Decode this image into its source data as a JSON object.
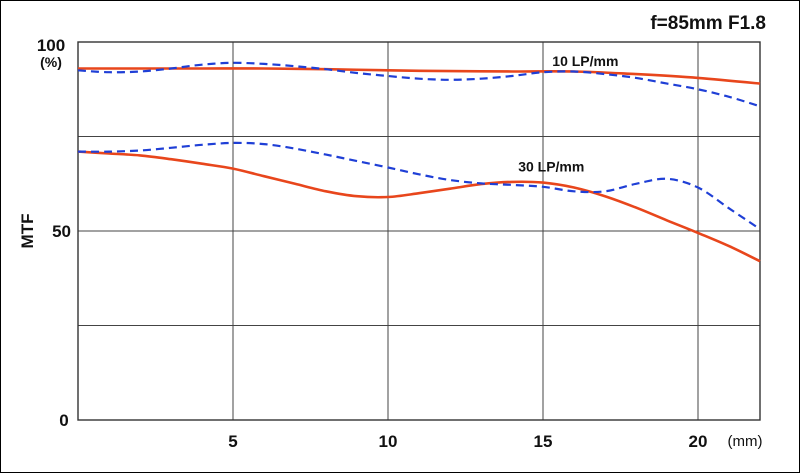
{
  "chart_data": {
    "type": "line",
    "title": "f=85mm F1.8",
    "ylabel": "MTF",
    "y_unit": "(%)",
    "x_unit": "(mm)",
    "xlim": [
      0,
      22
    ],
    "ylim": [
      0,
      100
    ],
    "x_ticks": [
      5,
      10,
      15,
      20
    ],
    "x_tick_labels": [
      "5",
      "10",
      "15",
      "20"
    ],
    "y_ticks": [
      0,
      50,
      100
    ],
    "y_tick_labels": [
      "0",
      "50",
      "100"
    ],
    "y_gridlines": [
      25,
      50,
      75,
      100
    ],
    "grid": true,
    "group_labels": [
      {
        "text": "10 LP/mm",
        "x": 15.3,
        "y": 95
      },
      {
        "text": "30 LP/mm",
        "x": 14.2,
        "y": 67
      }
    ],
    "series": [
      {
        "group": "10 LP/mm",
        "style": "solid",
        "color": "#e8461c",
        "x": [
          0,
          2,
          4,
          6,
          8,
          10,
          12,
          14,
          16,
          18,
          20,
          22
        ],
        "y": [
          93,
          93,
          93,
          93,
          92.8,
          92.5,
          92.3,
          92.2,
          92.2,
          91.5,
          90.5,
          89
        ]
      },
      {
        "group": "10 LP/mm",
        "style": "dashed",
        "color": "#1f3fd6",
        "x": [
          0,
          1,
          2,
          3,
          4,
          5,
          6,
          7,
          8,
          9,
          10,
          11,
          12,
          13,
          14,
          15,
          16,
          17,
          18,
          19,
          20,
          21,
          22
        ],
        "y": [
          92.5,
          92,
          92.2,
          93,
          94,
          94.5,
          94.2,
          93.6,
          92.8,
          91.8,
          91,
          90.3,
          90,
          90.3,
          91,
          92,
          92.2,
          91.5,
          90.5,
          89,
          87.5,
          85.5,
          83
        ]
      },
      {
        "group": "30 LP/mm",
        "style": "solid",
        "color": "#e8461c",
        "x": [
          0,
          1,
          2,
          3,
          4,
          5,
          6,
          7,
          8,
          9,
          10,
          11,
          12,
          13,
          14,
          15,
          16,
          17,
          18,
          19,
          20,
          21,
          22
        ],
        "y": [
          71,
          70.5,
          70,
          69,
          67.8,
          66.5,
          64.5,
          62.5,
          60.5,
          59.2,
          59,
          60,
          61.2,
          62.4,
          63,
          62.8,
          61.5,
          59.2,
          56.2,
          52.8,
          49.5,
          46,
          42
        ]
      },
      {
        "group": "30 LP/mm",
        "style": "dashed",
        "color": "#1f3fd6",
        "x": [
          0,
          1,
          2,
          3,
          4,
          5,
          6,
          7,
          8,
          9,
          10,
          11,
          12,
          13,
          14,
          15,
          16,
          17,
          18,
          19,
          20,
          21,
          22
        ],
        "y": [
          71,
          71,
          71.3,
          72,
          72.8,
          73.3,
          73,
          71.8,
          70.2,
          68.5,
          66.8,
          65,
          63.5,
          62.6,
          62.2,
          61.7,
          60.5,
          60.5,
          62.5,
          63.8,
          61.5,
          56,
          50.5
        ]
      }
    ]
  }
}
